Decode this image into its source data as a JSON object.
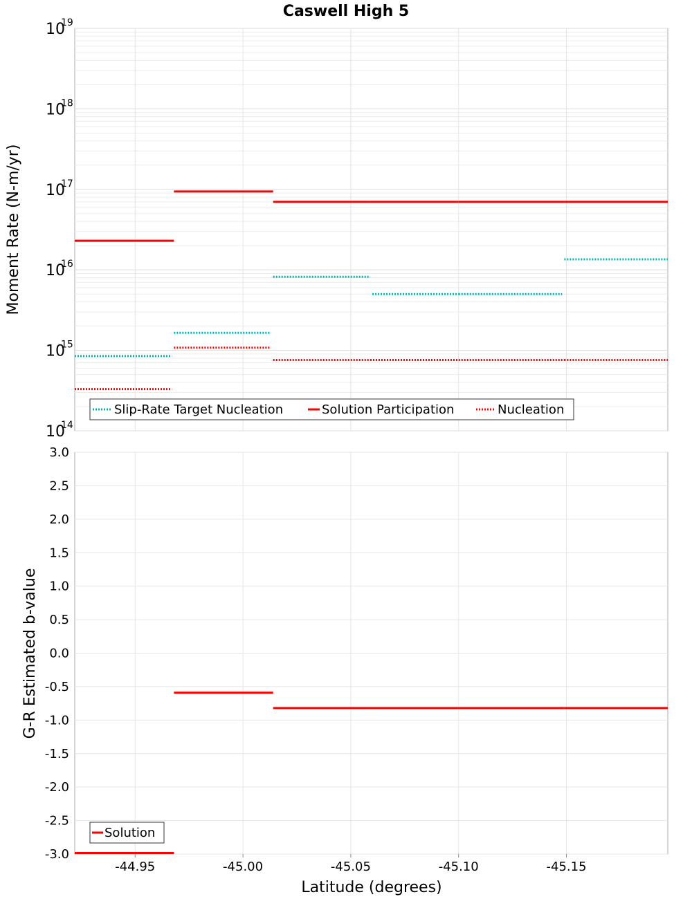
{
  "chart_data": [
    {
      "type": "line",
      "title": "Caswell High 5",
      "xlabel": "",
      "ylabel": "Moment Rate (N-m/yr)",
      "yscale": "log",
      "ylim": [
        100000000000000.0,
        1e+19
      ],
      "y_ticks": [
        {
          "base": "10",
          "exp": "14",
          "value": 14
        },
        {
          "base": "10",
          "exp": "15",
          "value": 15
        },
        {
          "base": "10",
          "exp": "16",
          "value": 16
        },
        {
          "base": "10",
          "exp": "17",
          "value": 17
        },
        {
          "base": "10",
          "exp": "18",
          "value": 18
        },
        {
          "base": "10",
          "exp": "19",
          "value": 19
        }
      ],
      "xlim": [
        -44.922,
        -45.197
      ],
      "x_ticks": [
        -44.95,
        -45.0,
        -45.05,
        -45.1,
        -45.15
      ],
      "legend_position": "bottom-left",
      "series": [
        {
          "name": "Slip-Rate Target Nucleation",
          "style": "dotted",
          "color": "#00b4b4",
          "segments": [
            {
              "x0": -44.922,
              "x1": -44.967,
              "y": 850000000000000.0
            },
            {
              "x0": -44.968,
              "x1": -45.013,
              "y": 1650000000000000.0
            },
            {
              "x0": -45.014,
              "x1": -45.059,
              "y": 8200000000000000.0
            },
            {
              "x0": -45.06,
              "x1": -45.1,
              "y": 5000000000000000.0
            },
            {
              "x0": -45.1,
              "x1": -45.148,
              "y": 5000000000000000.0
            },
            {
              "x0": -45.149,
              "x1": -45.197,
              "y": 1.35e+16
            }
          ]
        },
        {
          "name": "Solution Participation",
          "style": "solid",
          "color": "#ff0000",
          "segments": [
            {
              "x0": -44.922,
              "x1": -44.968,
              "y": 2.3e+16
            },
            {
              "x0": -44.968,
              "x1": -45.014,
              "y": 9.4e+16
            },
            {
              "x0": -45.014,
              "x1": -45.059,
              "y": 7e+16
            },
            {
              "x0": -45.059,
              "x1": -45.1,
              "y": 7e+16
            },
            {
              "x0": -45.1,
              "x1": -45.149,
              "y": 7e+16
            },
            {
              "x0": -45.149,
              "x1": -45.197,
              "y": 7e+16
            }
          ]
        },
        {
          "name": "Nucleation",
          "style": "dotted",
          "color": "#ff0000",
          "segments": [
            {
              "x0": -44.922,
              "x1": -44.967,
              "y": 330000000000000.0
            },
            {
              "x0": -44.968,
              "x1": -45.013,
              "y": 1080000000000000.0
            },
            {
              "x0": -45.014,
              "x1": -45.059,
              "y": 760000000000000.0
            },
            {
              "x0": -45.059,
              "x1": -45.1,
              "y": 760000000000000.0
            },
            {
              "x0": -45.1,
              "x1": -45.149,
              "y": 760000000000000.0
            },
            {
              "x0": -45.149,
              "x1": -45.197,
              "y": 760000000000000.0
            }
          ]
        }
      ]
    },
    {
      "type": "line",
      "title": "",
      "xlabel": "Latitude (degrees)",
      "ylabel": "G-R Estimated b-value",
      "ylim": [
        -3.0,
        3.0
      ],
      "y_ticks": [
        "-3.0",
        "-2.5",
        "-2.0",
        "-1.5",
        "-1.0",
        "-0.5",
        "0.0",
        "0.5",
        "1.0",
        "1.5",
        "2.0",
        "2.5",
        "3.0"
      ],
      "xlim": [
        -44.922,
        -45.197
      ],
      "x_ticks": [
        "-44.95",
        "-45.00",
        "-45.05",
        "-45.10",
        "-45.15"
      ],
      "legend_position": "bottom-left",
      "series": [
        {
          "name": "Solution",
          "style": "solid",
          "color": "#ff0000",
          "segments": [
            {
              "x0": -44.922,
              "x1": -44.968,
              "y": -3.0
            },
            {
              "x0": -44.968,
              "x1": -45.014,
              "y": -0.59
            },
            {
              "x0": -45.014,
              "x1": -45.059,
              "y": -0.82
            },
            {
              "x0": -45.059,
              "x1": -45.1,
              "y": -0.82
            },
            {
              "x0": -45.1,
              "x1": -45.149,
              "y": -0.82
            },
            {
              "x0": -45.149,
              "x1": -45.197,
              "y": -0.82
            }
          ]
        }
      ]
    }
  ]
}
